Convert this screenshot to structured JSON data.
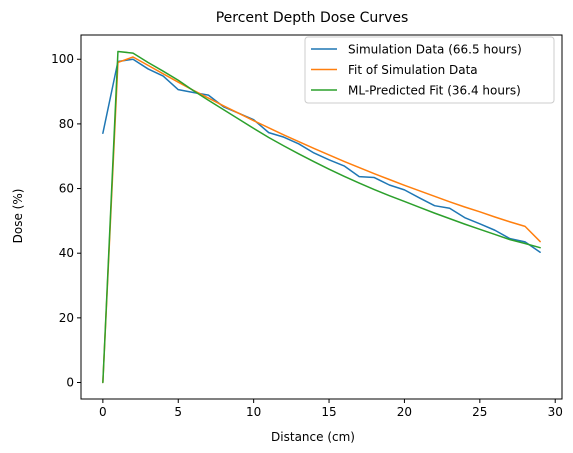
{
  "chart_data": {
    "type": "line",
    "title": "Percent Depth Dose Curves",
    "xlabel": "Distance (cm)",
    "ylabel": "Dose (%)",
    "xlim": [
      -1.45,
      30.45
    ],
    "ylim": [
      -5.1,
      107.5
    ],
    "xticks": [
      0,
      5,
      10,
      15,
      20,
      25,
      30
    ],
    "xtick_labels": [
      "0",
      "5",
      "10",
      "15",
      "20",
      "25",
      "30"
    ],
    "yticks": [
      0,
      20,
      40,
      60,
      80,
      100
    ],
    "ytick_labels": [
      "0",
      "20",
      "40",
      "60",
      "80",
      "100"
    ],
    "grid": false,
    "legend_position": "top-right",
    "x": [
      0,
      1,
      2,
      3,
      4,
      5,
      6,
      7,
      8,
      9,
      10,
      11,
      12,
      13,
      14,
      15,
      16,
      17,
      18,
      19,
      20,
      21,
      22,
      23,
      24,
      25,
      26,
      27,
      28,
      29
    ],
    "series": [
      {
        "name": "Simulation Data (66.5 hours)",
        "color": "#1f77b4",
        "values": [
          77.1,
          99.3,
          100.0,
          97.0,
          94.8,
          90.6,
          89.7,
          88.9,
          85.3,
          83.3,
          81.3,
          77.3,
          75.9,
          73.8,
          71.0,
          68.9,
          67.0,
          63.7,
          63.4,
          61.1,
          59.6,
          57.1,
          54.7,
          53.9,
          51.0,
          49.1,
          47.1,
          44.5,
          43.5,
          40.3
        ]
      },
      {
        "name": "Fit of Simulation Data",
        "color": "#ff7f0e",
        "values": [
          0,
          99.0,
          100.7,
          98.1,
          95.5,
          92.9,
          90.4,
          88.0,
          85.6,
          83.3,
          81.0,
          78.8,
          76.6,
          74.5,
          72.4,
          70.4,
          68.4,
          66.5,
          64.6,
          62.8,
          61.0,
          59.3,
          57.6,
          55.9,
          54.3,
          52.8,
          51.2,
          49.7,
          48.3,
          43.6
        ]
      },
      {
        "name": "ML-Predicted Fit (36.4 hours)",
        "color": "#2ca02c",
        "values": [
          0,
          102.4,
          101.9,
          99.0,
          96.3,
          93.5,
          90.3,
          87.3,
          84.4,
          81.5,
          78.6,
          75.8,
          73.2,
          70.7,
          68.3,
          66.0,
          63.8,
          61.7,
          59.7,
          57.8,
          56.0,
          54.2,
          52.4,
          50.7,
          49.0,
          47.4,
          45.8,
          44.2,
          43.0,
          41.7
        ]
      }
    ]
  }
}
